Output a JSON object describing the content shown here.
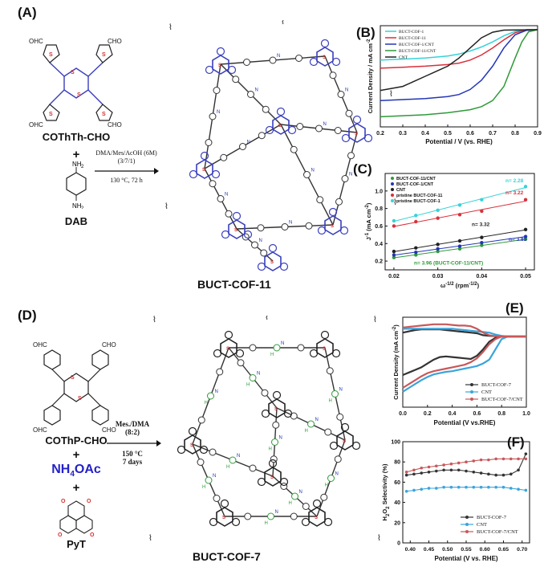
{
  "panels": {
    "A": {
      "label": "(A)",
      "monomer": "COThTh-CHO",
      "monomer_groups": [
        "OHC",
        "CHO",
        "OHC",
        "CHO"
      ],
      "plus": "+",
      "linker": "DAB",
      "linker_groups": [
        "NH",
        "2",
        "NH",
        "2"
      ],
      "cond_line1": "DMA/Mes/AcOH (6M)",
      "cond_line2": "(3/7/1)",
      "cond_line3": "130 °C, 72 h",
      "product": "BUCT-COF-11",
      "atom_labels": [
        "S",
        "N"
      ]
    },
    "D": {
      "label": "(D)",
      "monomer": "COThP-CHO",
      "monomer_groups": [
        "OHC",
        "CHO",
        "OHC",
        "CHO"
      ],
      "plus1": "+",
      "reagent_main": "NH",
      "reagent_sub": "4",
      "reagent_tail": "OAc",
      "plus2": "+",
      "reagent2": "PyT",
      "reagent2_atom": "O",
      "cond_line1": "Mes./DMA",
      "cond_line2": "(8:2)",
      "cond_line3": "150 °C",
      "cond_line4": "7 days",
      "product": "BUCT-COF-7",
      "atom_labels": [
        "S",
        "N",
        "H"
      ]
    }
  },
  "chart_data": [
    {
      "panel_label": "(B)",
      "type": "line",
      "xlabel": "Potential / V (vs. RHE)",
      "ylabel": "Current Density / mA cm",
      "ylabel_sup": "-2",
      "xlim": [
        0.2,
        0.9
      ],
      "xticks": [
        "0.2",
        "0.3",
        "0.4",
        "0.5",
        "0.6",
        "0.7",
        "0.8",
        "0.9"
      ],
      "legend_position": "top-left",
      "series": [
        {
          "name": "BUCT-COF-1",
          "color": "#35d3d8",
          "x": [
            0.2,
            0.3,
            0.4,
            0.5,
            0.55,
            0.6,
            0.65,
            0.7,
            0.75,
            0.8,
            0.85,
            0.9
          ],
          "y": [
            -1.5,
            -1.45,
            -1.4,
            -1.3,
            -1.2,
            -1.05,
            -0.85,
            -0.6,
            -0.3,
            -0.08,
            0,
            0
          ]
        },
        {
          "name": "BUCT-COF-11",
          "color": "#d9303a",
          "x": [
            0.2,
            0.3,
            0.4,
            0.5,
            0.55,
            0.6,
            0.65,
            0.7,
            0.75,
            0.8,
            0.85,
            0.9
          ],
          "y": [
            -1.9,
            -1.85,
            -1.8,
            -1.72,
            -1.65,
            -1.5,
            -1.25,
            -0.9,
            -0.5,
            -0.15,
            0,
            0
          ]
        },
        {
          "name": "BUCT-COF-1/CNT",
          "color": "#2236b8",
          "x": [
            0.2,
            0.3,
            0.4,
            0.5,
            0.55,
            0.6,
            0.65,
            0.7,
            0.75,
            0.8,
            0.85,
            0.9
          ],
          "y": [
            -3.5,
            -3.45,
            -3.4,
            -3.3,
            -3.2,
            -2.95,
            -2.5,
            -1.8,
            -0.9,
            -0.25,
            -0.03,
            0
          ]
        },
        {
          "name": "BUCT-COF-11/CNT",
          "color": "#2f9a38",
          "x": [
            0.2,
            0.3,
            0.4,
            0.5,
            0.6,
            0.65,
            0.7,
            0.75,
            0.8,
            0.83,
            0.86,
            0.9
          ],
          "y": [
            -4.3,
            -4.25,
            -4.2,
            -4.1,
            -3.95,
            -3.8,
            -3.5,
            -2.8,
            -1.4,
            -0.6,
            -0.1,
            0
          ]
        },
        {
          "name": "CNT",
          "color": "#222222",
          "x": [
            0.2,
            0.3,
            0.35,
            0.4,
            0.45,
            0.5,
            0.55,
            0.6,
            0.65,
            0.7,
            0.75,
            0.9
          ],
          "y": [
            -3.0,
            -2.8,
            -2.55,
            -2.3,
            -2.05,
            -1.8,
            -1.4,
            -0.9,
            -0.4,
            -0.12,
            -0.02,
            0
          ]
        }
      ]
    },
    {
      "panel_label": "(C)",
      "type": "scatter",
      "xlabel": "ω",
      "xlabel_sup": "-1/2",
      "xlabel_unit": " (rpm",
      "xlabel_unit_sup": "-1/2",
      "xlabel_close": ")",
      "ylabel": "J",
      "ylabel_sup": "-1",
      "ylabel_unit": " (mA cm",
      "ylabel_unit_sup": "-2",
      "ylabel_close": ")",
      "xlim": [
        0.018,
        0.052
      ],
      "ylim": [
        0.1,
        1.2
      ],
      "xticks": [
        "0.02",
        "0.03",
        "0.04",
        "0.05"
      ],
      "yticks": [
        "0.2",
        "0.4",
        "0.6",
        "0.8",
        "1.0"
      ],
      "legend_position": "top-left",
      "x": [
        0.02,
        0.025,
        0.03,
        0.035,
        0.04,
        0.05
      ],
      "series": [
        {
          "name": "BUCT-COF-11/CNT",
          "color": "#2f9a38",
          "y": [
            0.24,
            0.27,
            0.31,
            0.34,
            0.38,
            0.45
          ]
        },
        {
          "name": "BUCT-COF-1/CNT",
          "color": "#2236b8",
          "y": [
            0.27,
            0.3,
            0.34,
            0.37,
            0.41,
            0.48
          ]
        },
        {
          "name": "CNT",
          "color": "#222222",
          "y": [
            0.31,
            0.35,
            0.39,
            0.43,
            0.47,
            0.56
          ]
        },
        {
          "name": "pristine BUCT-COF-11",
          "color": "#d9303a",
          "y": [
            0.6,
            0.65,
            0.69,
            0.73,
            0.77,
            0.9
          ]
        },
        {
          "name": "pristine BUCT-COF-1",
          "color": "#35d3d8",
          "y": [
            0.66,
            0.72,
            0.78,
            0.84,
            0.9,
            1.05
          ]
        }
      ],
      "annotations": [
        {
          "text": "n= 2.28",
          "color": "#35d3d8"
        },
        {
          "text": "n= 3.22",
          "color": "#d9303a"
        },
        {
          "text": "n= 3.32",
          "color": "#222222"
        },
        {
          "text": "n= 3.83",
          "color": "#2236b8"
        },
        {
          "text": "n= 3.96 (BUCT-COF-11/CNT)",
          "color": "#2f9a38"
        }
      ]
    },
    {
      "panel_label": "(E)",
      "type": "line",
      "xlabel": "Potential (V vs.RHE)",
      "ylabel": "Current Density (mA cm",
      "ylabel_sup": "-2",
      "ylabel_close": ")",
      "xlim": [
        0.0,
        1.0
      ],
      "ylim": [
        -5.5,
        1.5
      ],
      "xticks": [
        "0.0",
        "0.2",
        "0.4",
        "0.6",
        "0.8",
        "1.0"
      ],
      "legend_position": "bottom-right",
      "series": [
        {
          "name": "BUCT-COF-7",
          "color": "#333333",
          "x": [
            0.0,
            0.05,
            0.1,
            0.15,
            0.2,
            0.25,
            0.3,
            0.35,
            0.4,
            0.45,
            0.5,
            0.55,
            0.6,
            0.65,
            0.7,
            0.75,
            0.8,
            0.85,
            0.9,
            1.0
          ],
          "y": [
            -3.0,
            -2.8,
            -2.6,
            -2.4,
            -2.1,
            -1.8,
            -1.6,
            -1.55,
            -1.6,
            -1.65,
            -1.7,
            -1.75,
            -1.5,
            -1.0,
            -0.4,
            -0.1,
            0,
            0,
            0,
            0
          ],
          "y_anodic": [
            0.3,
            0.4,
            0.5,
            0.55,
            0.55,
            0.55,
            0.55,
            0.5,
            0.45,
            0.4,
            0.35,
            0.3,
            0.25,
            0.1,
            0.05,
            0.02,
            0,
            0,
            0,
            0
          ]
        },
        {
          "name": "CNT",
          "color": "#3aa4dc",
          "x": [
            0.0,
            0.05,
            0.1,
            0.15,
            0.2,
            0.25,
            0.3,
            0.35,
            0.4,
            0.45,
            0.5,
            0.55,
            0.6,
            0.65,
            0.7,
            0.75,
            0.8,
            0.85,
            0.9,
            1.0
          ],
          "y": [
            -4.3,
            -4.0,
            -3.7,
            -3.4,
            -3.15,
            -2.95,
            -2.85,
            -2.75,
            -2.7,
            -2.6,
            -2.5,
            -2.4,
            -2.3,
            -2.1,
            -1.8,
            -1.0,
            -0.2,
            0,
            0,
            0
          ],
          "y_anodic": [
            0.6,
            0.6,
            0.6,
            0.6,
            0.6,
            0.6,
            0.6,
            0.6,
            0.6,
            0.55,
            0.5,
            0.45,
            0.4,
            0.35,
            0.3,
            0.15,
            0.05,
            0,
            0,
            0
          ]
        },
        {
          "name": "BUCT-COF-7/CNT",
          "color": "#c8585a",
          "x": [
            0.0,
            0.05,
            0.1,
            0.15,
            0.2,
            0.25,
            0.3,
            0.35,
            0.4,
            0.45,
            0.5,
            0.55,
            0.6,
            0.65,
            0.7,
            0.75,
            0.8,
            0.85,
            0.9,
            1.0
          ],
          "y": [
            -4.0,
            -3.7,
            -3.4,
            -3.1,
            -2.85,
            -2.7,
            -2.6,
            -2.5,
            -2.4,
            -2.3,
            -2.2,
            -2.0,
            -1.7,
            -1.2,
            -0.6,
            -0.2,
            0,
            0,
            0,
            0
          ],
          "y_anodic": [
            0.7,
            0.75,
            0.8,
            0.85,
            0.9,
            0.95,
            0.95,
            0.95,
            0.9,
            0.85,
            0.85,
            0.8,
            0.6,
            0.3,
            0.1,
            0.02,
            0,
            0,
            0,
            0
          ]
        }
      ]
    },
    {
      "panel_label": "(F)",
      "type": "line",
      "xlabel": "Potential (V vs. RHE)",
      "ylabel_main": "H",
      "ylabel_sub1": "2",
      "ylabel_mid": "O",
      "ylabel_sub2": "2",
      "ylabel_tail": " Selectivity (%)",
      "xlim": [
        0.38,
        0.72
      ],
      "ylim": [
        0,
        100
      ],
      "xticks": [
        "0.40",
        "0.45",
        "0.50",
        "0.55",
        "0.60",
        "0.65",
        "0.70"
      ],
      "yticks": [
        "0",
        "20",
        "40",
        "60",
        "80",
        "100"
      ],
      "legend_position": "bottom-right",
      "x": [
        0.39,
        0.41,
        0.43,
        0.45,
        0.47,
        0.49,
        0.51,
        0.53,
        0.55,
        0.57,
        0.59,
        0.61,
        0.63,
        0.65,
        0.67,
        0.69,
        0.71
      ],
      "series": [
        {
          "name": "BUCT-COF-7",
          "color": "#333333",
          "y": [
            67,
            68,
            69,
            70,
            71,
            72,
            72,
            72,
            71,
            70,
            69,
            68,
            67,
            67,
            68,
            72,
            88
          ]
        },
        {
          "name": "CNT",
          "color": "#3aa4dc",
          "y": [
            51,
            52,
            53,
            54,
            54,
            55,
            55,
            55,
            55,
            55,
            55,
            55,
            55,
            55,
            54,
            53,
            52
          ]
        },
        {
          "name": "BUCT-COF-7/CNT",
          "color": "#c8585a",
          "y": [
            70,
            72,
            74,
            75,
            76,
            77,
            78,
            79,
            80,
            81,
            82,
            82,
            83,
            83,
            83,
            83,
            83
          ]
        }
      ]
    }
  ]
}
